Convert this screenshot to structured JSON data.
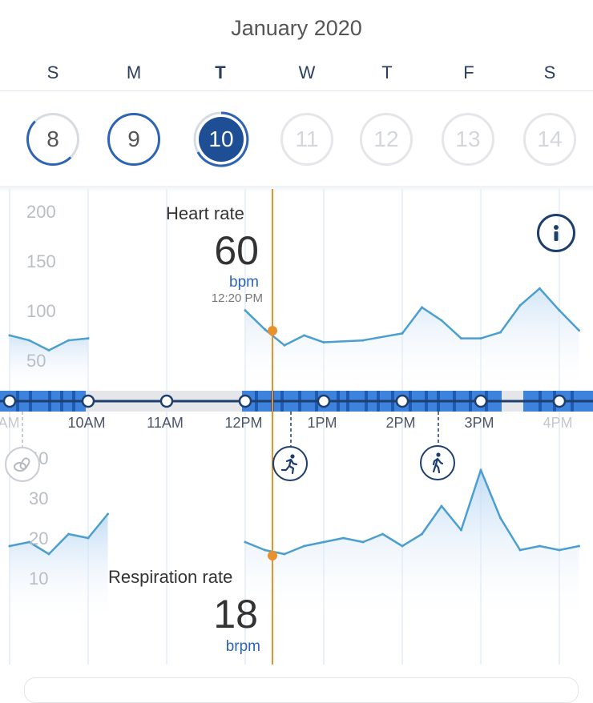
{
  "header": {
    "month": "January 2020",
    "weekdays": [
      "S",
      "M",
      "T",
      "W",
      "T",
      "F",
      "S"
    ],
    "days": [
      "8",
      "9",
      "10",
      "11",
      "12",
      "13",
      "14"
    ]
  },
  "heart_rate": {
    "title": "Heart rate",
    "value": "60",
    "unit": "bpm",
    "time": "12:20 PM",
    "y_ticks": [
      "200",
      "150",
      "100",
      "50"
    ]
  },
  "respiration": {
    "title": "Respiration rate",
    "value": "18",
    "unit": "brpm",
    "y_ticks": [
      "40",
      "30",
      "20",
      "10"
    ]
  },
  "timeline": {
    "labels": [
      "AM",
      "10AM",
      "11AM",
      "12PM",
      "1PM",
      "2PM",
      "3PM",
      "4PM"
    ]
  },
  "activities": [
    {
      "icon": "running-icon"
    },
    {
      "icon": "walking-icon"
    },
    {
      "icon": "pills-icon"
    }
  ],
  "colors": {
    "accent": "#1e4f94",
    "ring": "#2d64b4",
    "cursor": "#e8922f",
    "line": "#4a9fd0"
  },
  "chart_data": [
    {
      "type": "line",
      "title": "Heart rate",
      "ylim": [
        0,
        200
      ],
      "series": [
        {
          "x": [
            9.0,
            9.25,
            9.5,
            9.75,
            10.0,
            12.0,
            12.25,
            12.5,
            12.75,
            13.0,
            13.5,
            14.0,
            14.25,
            14.5,
            14.75,
            15.0,
            15.25,
            15.5,
            15.75,
            16.0,
            16.25
          ],
          "values": [
            75,
            70,
            60,
            70,
            72,
            100,
            81,
            65,
            75,
            68,
            70,
            77,
            103,
            90,
            72,
            72,
            78,
            105,
            122,
            100,
            80
          ]
        }
      ]
    },
    {
      "type": "line",
      "title": "Respiration rate",
      "ylim": [
        0,
        40
      ],
      "series": [
        {
          "x": [
            9.0,
            9.25,
            9.5,
            9.75,
            10.0,
            10.25,
            12.0,
            12.25,
            12.5,
            12.75,
            13.0,
            13.25,
            13.5,
            13.75,
            14.0,
            14.25,
            14.5,
            14.75,
            15.0,
            15.25,
            15.5,
            15.75,
            16.0,
            16.25
          ],
          "values": [
            18,
            19,
            16,
            21,
            20,
            26,
            19,
            17,
            16,
            18,
            19,
            20,
            19,
            21,
            18,
            21,
            28,
            22,
            37,
            25,
            17,
            18,
            17,
            18
          ]
        }
      ]
    }
  ]
}
